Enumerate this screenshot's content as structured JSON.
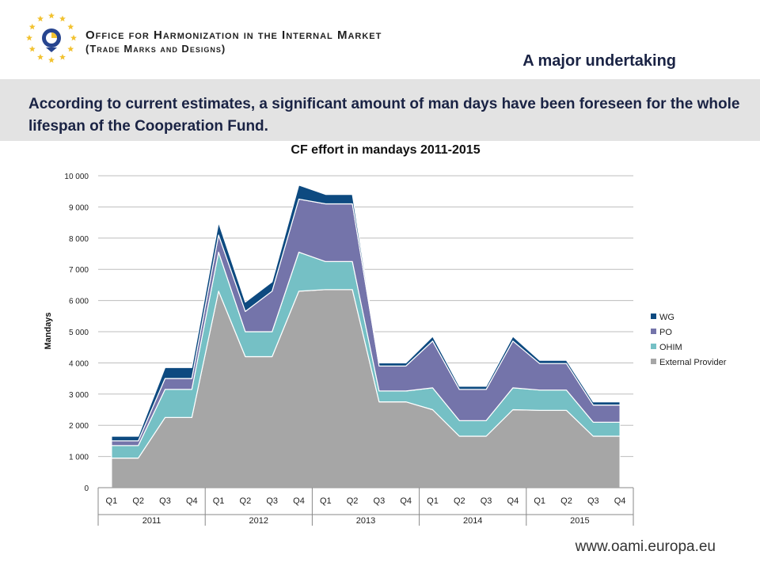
{
  "header": {
    "org_name": "Office for Harmonization in the Internal Market",
    "org_sub": "(Trade Marks and Designs)",
    "slide_title": "A major undertaking"
  },
  "intro": "According to current estimates, a significant amount of man days have been foreseen for the whole lifespan of the Cooperation Fund.",
  "footer": {
    "url": "www.oami.europa.eu"
  },
  "colors": {
    "wg": "#0d4a80",
    "po": "#7474aa",
    "ohim": "#75c0c5",
    "external": "#a6a6a6",
    "logo_star": "#f2c230",
    "logo_blue": "#27458f"
  },
  "chart_data": {
    "type": "area",
    "stacked": true,
    "title": "CF effort in mandays 2011-2015",
    "ylabel": "Mandays",
    "xlabel": "",
    "ylim": [
      0,
      10000
    ],
    "yticks": [
      0,
      1000,
      2000,
      3000,
      4000,
      5000,
      6000,
      7000,
      8000,
      9000,
      10000
    ],
    "ytick_labels": [
      "0",
      "1 000",
      "2 000",
      "3 000",
      "4 000",
      "5 000",
      "6 000",
      "7 000",
      "8 000",
      "9 000",
      "10 000"
    ],
    "grid": true,
    "legend_position": "right",
    "categories": [
      "Q1",
      "Q2",
      "Q3",
      "Q4",
      "Q1",
      "Q2",
      "Q3",
      "Q4",
      "Q1",
      "Q2",
      "Q3",
      "Q4",
      "Q1",
      "Q2",
      "Q3",
      "Q4",
      "Q1",
      "Q2",
      "Q3",
      "Q4"
    ],
    "years": [
      "2011",
      "2012",
      "2013",
      "2014",
      "2015"
    ],
    "series": [
      {
        "name": "External Provider",
        "values": [
          950,
          950,
          2250,
          2250,
          6300,
          4200,
          4200,
          6300,
          6350,
          6350,
          2750,
          2750,
          2500,
          1650,
          1650,
          2500,
          2480,
          2480,
          1650,
          1650
        ]
      },
      {
        "name": "OHIM",
        "values": [
          400,
          400,
          900,
          900,
          1250,
          800,
          800,
          1250,
          900,
          900,
          350,
          350,
          700,
          500,
          500,
          700,
          650,
          650,
          450,
          450
        ]
      },
      {
        "name": "PO",
        "values": [
          150,
          150,
          350,
          350,
          550,
          650,
          1300,
          1700,
          1850,
          1850,
          800,
          800,
          1500,
          1000,
          1000,
          1500,
          850,
          850,
          550,
          550
        ]
      },
      {
        "name": "WG",
        "values": [
          150,
          150,
          350,
          350,
          400,
          300,
          300,
          450,
          300,
          300,
          100,
          100,
          150,
          100,
          100,
          150,
          100,
          100,
          100,
          100
        ]
      }
    ],
    "legend": [
      "WG",
      "PO",
      "OHIM",
      "External Provider"
    ]
  }
}
